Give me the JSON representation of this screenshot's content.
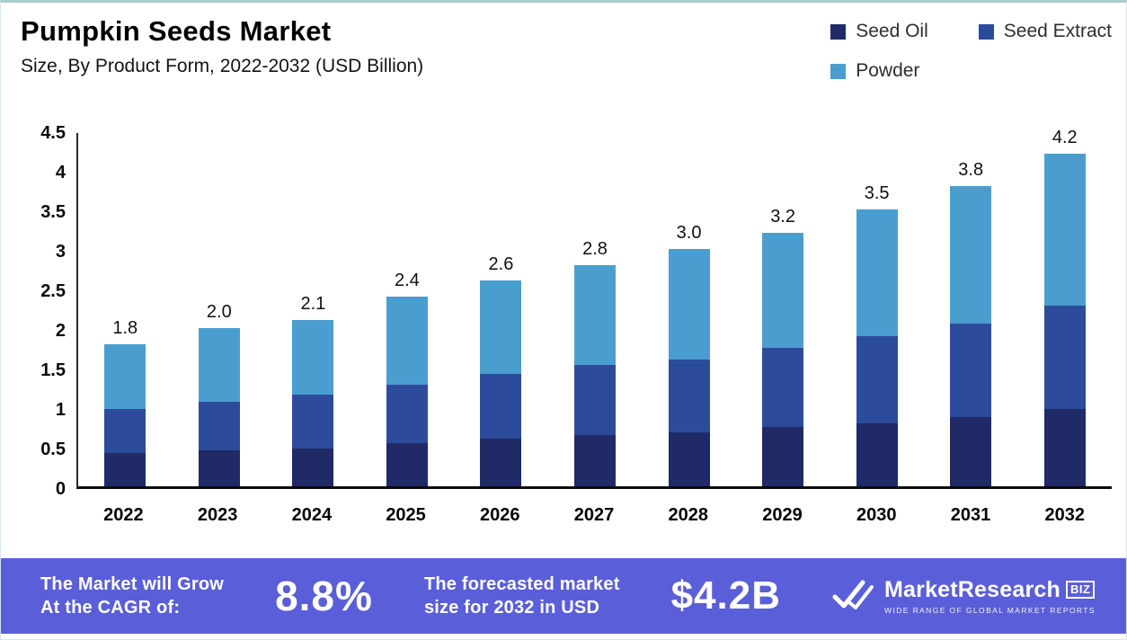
{
  "header": {
    "title": "Pumpkin Seeds Market",
    "subtitle": "Size, By Product Form, 2022-2032 (USD Billion)"
  },
  "legend": [
    {
      "label": "Seed Oil",
      "color": "#1f2a66"
    },
    {
      "label": "Seed Extract",
      "color": "#2d4b9b"
    },
    {
      "label": "Powder",
      "color": "#4a9ecf"
    }
  ],
  "chart_data": {
    "type": "bar",
    "stacked": true,
    "title": "Pumpkin Seeds Market",
    "subtitle": "Size, By Product Form, 2022-2032 (USD Billion)",
    "xlabel": "",
    "ylabel": "",
    "ylim": [
      0,
      4.5
    ],
    "grid": false,
    "legend_position": "top-right",
    "categories": [
      "2022",
      "2023",
      "2024",
      "2025",
      "2026",
      "2027",
      "2028",
      "2029",
      "2030",
      "2031",
      "2032"
    ],
    "series": [
      {
        "name": "Seed Oil",
        "color": "#1f2a66",
        "values": [
          0.42,
          0.45,
          0.48,
          0.55,
          0.6,
          0.65,
          0.68,
          0.75,
          0.8,
          0.88,
          0.98
        ]
      },
      {
        "name": "Seed Extract",
        "color": "#2d4b9b",
        "values": [
          0.56,
          0.62,
          0.68,
          0.73,
          0.82,
          0.88,
          0.92,
          1.0,
          1.1,
          1.18,
          1.3
        ]
      },
      {
        "name": "Powder",
        "color": "#4a9ecf",
        "values": [
          0.82,
          0.93,
          0.94,
          1.12,
          1.18,
          1.27,
          1.4,
          1.45,
          1.6,
          1.74,
          1.92
        ]
      }
    ],
    "totals": [
      1.8,
      2.0,
      2.1,
      2.4,
      2.6,
      2.8,
      3.0,
      3.2,
      3.5,
      3.8,
      4.2
    ],
    "total_labels": [
      "1.8",
      "2.0",
      "2.1",
      "2.4",
      "2.6",
      "2.8",
      "3.0",
      "3.2",
      "3.5",
      "3.8",
      "4.2"
    ],
    "y_ticks": [
      "4.5",
      "4",
      "3.5",
      "3",
      "2.5",
      "2",
      "1.5",
      "1",
      "0.5",
      "0"
    ]
  },
  "banner": {
    "background": "#5a5ed8",
    "cagr_line1": "The Market will Grow",
    "cagr_line2": "At the CAGR of:",
    "cagr_value": "8.8%",
    "forecast_line1": "The forecasted market",
    "forecast_line2": "size for 2032 in USD",
    "forecast_value": "$4.2B",
    "logo": {
      "name": "MarketResearch",
      "suffix": "BIZ",
      "tagline": "WIDE RANGE OF GLOBAL MARKET REPORTS"
    }
  }
}
